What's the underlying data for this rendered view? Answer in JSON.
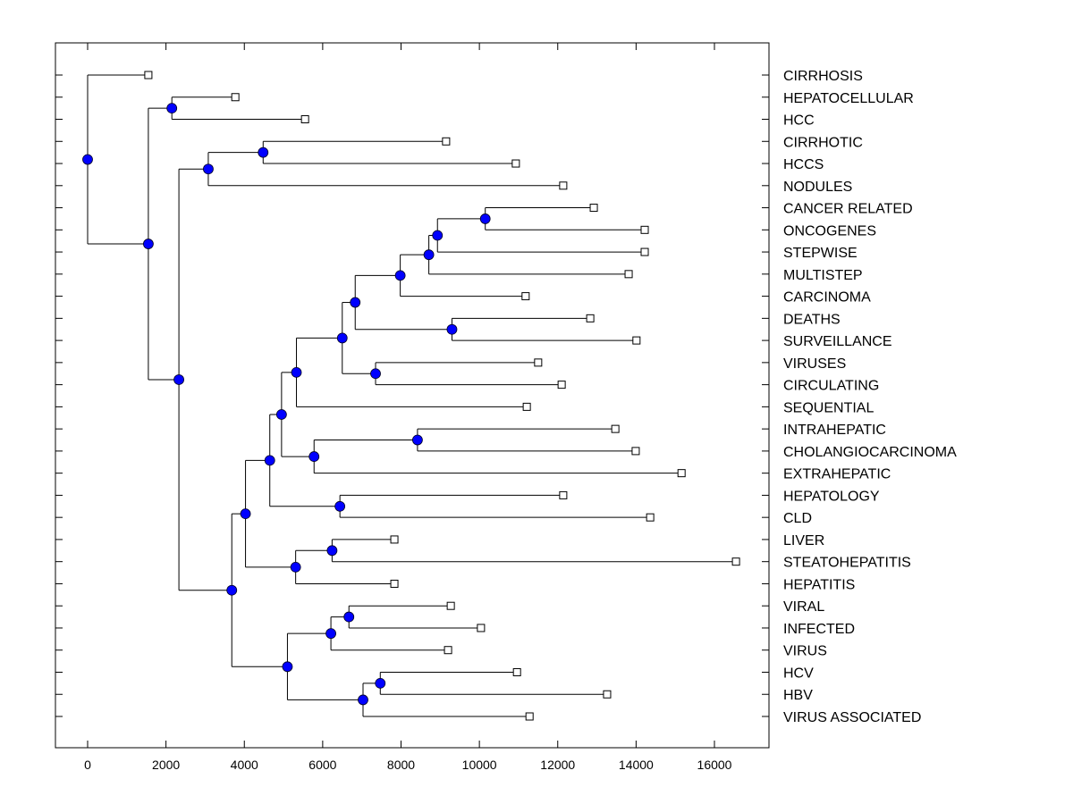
{
  "chart_data": {
    "type": "dendrogram",
    "title": "",
    "xlabel": "",
    "ylabel": "",
    "xlim": [
      -800,
      17500
    ],
    "xticks": [
      0,
      2000,
      4000,
      6000,
      8000,
      10000,
      12000,
      14000,
      16000
    ],
    "xtick_labels": [
      "0",
      "2000",
      "4000",
      "6000",
      "8000",
      "10000",
      "12000",
      "14000",
      "16000"
    ],
    "grid": false,
    "leaf_order": [
      "CIRRHOSIS",
      "HEPATOCELLULAR",
      "HCC",
      "CIRRHOTIC",
      "HCCS",
      "NODULES",
      "CANCER RELATED",
      "ONCOGENES",
      "STEPWISE",
      "MULTISTEP",
      "CARCINOMA",
      "DEATHS",
      "SURVEILLANCE",
      "VIRUSES",
      "CIRCULATING",
      "SEQUENTIAL",
      "INTRAHEPATIC",
      "CHOLANGIOCARCINOMA",
      "EXTRAHEPATIC",
      "HEPATOLOGY",
      "CLD",
      "LIVER",
      "STEATOHEPATITIS",
      "HEPATITIS",
      "VIRAL",
      "INFECTED",
      "VIRUS",
      "HCV",
      "HBV",
      "VIRUS ASSOCIATED"
    ],
    "leaf_values": [
      1550,
      3770,
      5550,
      9150,
      10930,
      12140,
      12920,
      14220,
      14220,
      13810,
      11180,
      12830,
      14010,
      11500,
      12100,
      11210,
      13470,
      13990,
      15160,
      12140,
      14360,
      7830,
      16550,
      7830,
      9270,
      10040,
      9200,
      10960,
      13260,
      11280
    ],
    "tree": {
      "x": 0,
      "children": [
        {
          "leaf": 0
        },
        {
          "x": 1550,
          "children": [
            {
              "x": 2150,
              "children": [
                {
                  "leaf": 1
                },
                {
                  "leaf": 2
                }
              ]
            },
            {
              "x": 2330,
              "children": [
                {
                  "x": 3080,
                  "children": [
                    {
                      "x": 4480,
                      "children": [
                        {
                          "leaf": 3
                        },
                        {
                          "leaf": 4
                        }
                      ]
                    },
                    {
                      "leaf": 5
                    }
                  ]
                },
                {
                  "x": 3680,
                  "children": [
                    {
                      "x": 4030,
                      "children": [
                        {
                          "x": 4650,
                          "children": [
                            {
                              "x": 4950,
                              "children": [
                                {
                                  "x": 5330,
                                  "children": [
                                    {
                                      "x": 6500,
                                      "children": [
                                        {
                                          "x": 6830,
                                          "children": [
                                            {
                                              "x": 7980,
                                              "children": [
                                                {
                                                  "x": 8710,
                                                  "children": [
                                                    {
                                                      "x": 8930,
                                                      "children": [
                                                        {
                                                          "x": 10150,
                                                          "children": [
                                                            {
                                                              "leaf": 6
                                                            },
                                                            {
                                                              "leaf": 7
                                                            }
                                                          ]
                                                        },
                                                        {
                                                          "leaf": 8
                                                        }
                                                      ]
                                                    },
                                                    {
                                                      "leaf": 9
                                                    }
                                                  ]
                                                },
                                                {
                                                  "leaf": 10
                                                }
                                              ]
                                            },
                                            {
                                              "x": 9300,
                                              "children": [
                                                {
                                                  "leaf": 11
                                                },
                                                {
                                                  "leaf": 12
                                                }
                                              ]
                                            }
                                          ]
                                        },
                                        {
                                          "x": 7350,
                                          "children": [
                                            {
                                              "leaf": 13
                                            },
                                            {
                                              "leaf": 14
                                            }
                                          ]
                                        }
                                      ]
                                    },
                                    {
                                      "leaf": 15
                                    }
                                  ]
                                },
                                {
                                  "x": 5780,
                                  "children": [
                                    {
                                      "x": 8420,
                                      "children": [
                                        {
                                          "leaf": 16
                                        },
                                        {
                                          "leaf": 17
                                        }
                                      ]
                                    },
                                    {
                                      "leaf": 18
                                    }
                                  ]
                                }
                              ]
                            },
                            {
                              "x": 6440,
                              "children": [
                                {
                                  "leaf": 19
                                },
                                {
                                  "leaf": 20
                                }
                              ]
                            }
                          ]
                        },
                        {
                          "x": 5310,
                          "children": [
                            {
                              "x": 6240,
                              "children": [
                                {
                                  "leaf": 21
                                },
                                {
                                  "leaf": 22
                                }
                              ]
                            },
                            {
                              "leaf": 23
                            }
                          ]
                        }
                      ]
                    },
                    {
                      "x": 5100,
                      "children": [
                        {
                          "x": 6210,
                          "children": [
                            {
                              "x": 6670,
                              "children": [
                                {
                                  "leaf": 24
                                },
                                {
                                  "leaf": 25
                                }
                              ]
                            },
                            {
                              "leaf": 26
                            }
                          ]
                        },
                        {
                          "x": 7030,
                          "children": [
                            {
                              "x": 7470,
                              "children": [
                                {
                                  "leaf": 27
                                },
                                {
                                  "leaf": 28
                                }
                              ]
                            },
                            {
                              "leaf": 29
                            }
                          ]
                        }
                      ]
                    }
                  ]
                }
              ]
            }
          ]
        }
      ]
    },
    "node_color": "#0000ff",
    "leaf_marker_color": "#ffffff",
    "line_color": "#000000"
  }
}
